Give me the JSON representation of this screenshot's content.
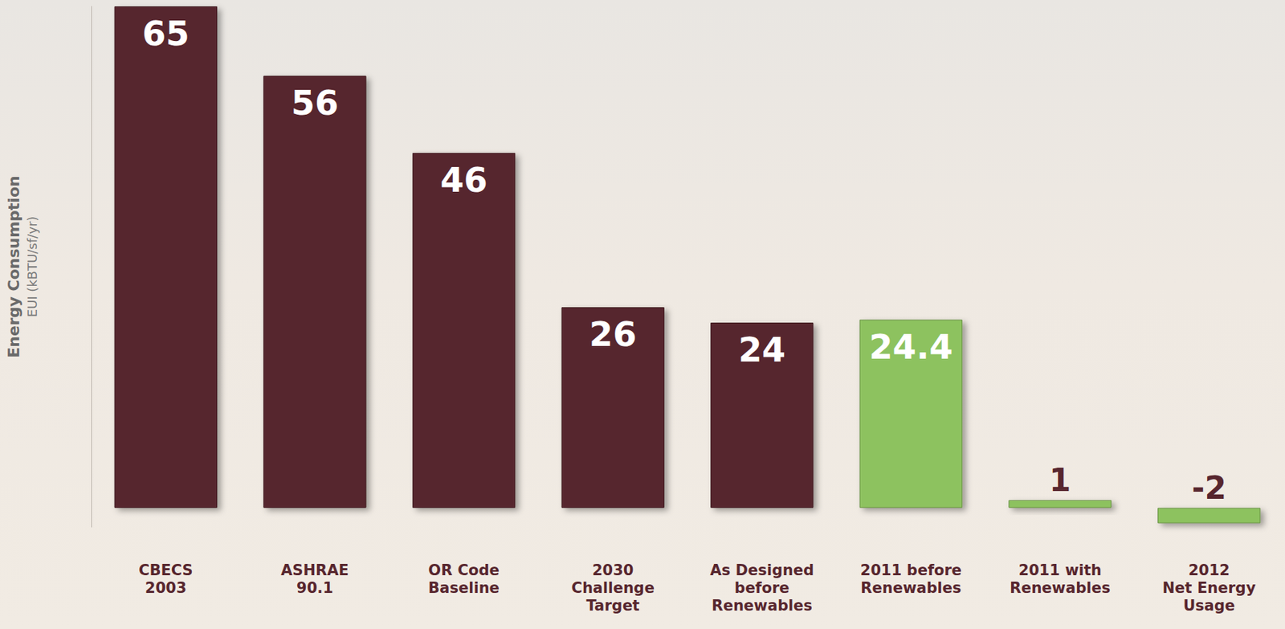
{
  "chart_data": {
    "type": "bar",
    "ylabel": "Energy Consumption",
    "ylabel_sub": "EUI (kBTU/sf/yr)",
    "categories": [
      "CBECS\n2003",
      "ASHRAE\n90.1",
      "OR Code\nBaseline",
      "2030\nChallenge\nTarget",
      "As Designed\nbefore\nRenewables",
      "2011 before\nRenewables",
      "2011 with\nRenewables",
      "2012\nNet Energy\nUsage"
    ],
    "values": [
      65,
      56,
      46,
      26,
      24,
      24.4,
      1,
      -2
    ],
    "colors": [
      "#57262e",
      "#57262e",
      "#57262e",
      "#57262e",
      "#57262e",
      "#8dc25e",
      "#8dc25e",
      "#8dc25e"
    ],
    "ylim": [
      -2.5,
      65
    ],
    "yticks": [],
    "tick_labels": "x",
    "data_labels": true,
    "grid": false
  }
}
